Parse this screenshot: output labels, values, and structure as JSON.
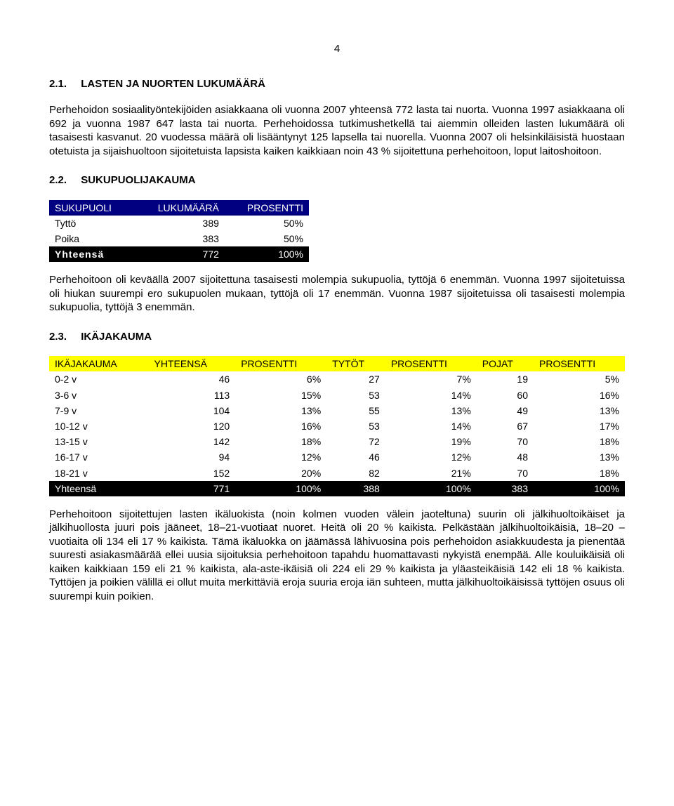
{
  "page_number": "4",
  "section1": {
    "heading_num": "2.1.",
    "heading_text": "LASTEN JA NUORTEN LUKUMÄÄRÄ",
    "para": "Perhehoidon sosiaalityöntekijöiden asiakkaana oli vuonna 2007 yhteensä 772 lasta tai nuorta. Vuonna 1997 asiakkaana oli 692 ja vuonna 1987 647 lasta tai nuorta. Perhehoidossa tutkimushetkellä tai aiemmin olleiden lasten lukumäärä oli tasaisesti kasvanut. 20 vuodessa määrä oli lisääntynyt 125 lapsella tai nuorella. Vuonna 2007 oli helsinkiläisistä huostaan otetuista ja sijaishuoltoon sijoitetuista lapsista kaiken kaikkiaan noin 43 % sijoitettuna perhehoitoon, loput laitoshoitoon."
  },
  "section2": {
    "heading_num": "2.2.",
    "heading_text": "SUKUPUOLIJAKAUMA",
    "table": {
      "header_bg": "#000080",
      "header_fg": "#ffffff",
      "total_bg": "#000000",
      "total_fg": "#ffffff",
      "columns": [
        "SUKUPUOLI",
        "LUKUMÄÄRÄ",
        "PROSENTTI"
      ],
      "rows": [
        {
          "label": "Tyttö",
          "count": "389",
          "pct": "50%"
        },
        {
          "label": "Poika",
          "count": "383",
          "pct": "50%"
        }
      ],
      "total": {
        "label": "Yhteensä",
        "count": "772",
        "pct": "100%"
      }
    },
    "para": "Perhehoitoon oli keväällä 2007 sijoitettuna tasaisesti molempia sukupuolia, tyttöjä 6 enemmän. Vuonna 1997 sijoitetuissa oli hiukan suurempi ero sukupuolen mukaan, tyttöjä oli 17 enemmän. Vuonna 1987 sijoitetuissa oli tasaisesti molempia sukupuolia, tyttöjä 3 enemmän."
  },
  "section3": {
    "heading_num": "2.3.",
    "heading_text": "IKÄJAKAUMA",
    "table": {
      "header_bg": "#ffff00",
      "header_fg": "#000000",
      "total_bg": "#000000",
      "total_fg": "#ffffff",
      "columns": [
        "IKÄJAKAUMA",
        "YHTEENSÄ",
        "PROSENTTI",
        "TYTÖT",
        "PROSENTTI",
        "POJAT",
        "PROSENTTI"
      ],
      "rows": [
        {
          "label": "0-2 v",
          "v1": "46",
          "p1": "6%",
          "v2": "27",
          "p2": "7%",
          "v3": "19",
          "p3": "5%"
        },
        {
          "label": "3-6 v",
          "v1": "113",
          "p1": "15%",
          "v2": "53",
          "p2": "14%",
          "v3": "60",
          "p3": "16%"
        },
        {
          "label": "7-9 v",
          "v1": "104",
          "p1": "13%",
          "v2": "55",
          "p2": "13%",
          "v3": "49",
          "p3": "13%"
        },
        {
          "label": "10-12 v",
          "v1": "120",
          "p1": "16%",
          "v2": "53",
          "p2": "14%",
          "v3": "67",
          "p3": "17%"
        },
        {
          "label": "13-15 v",
          "v1": "142",
          "p1": "18%",
          "v2": "72",
          "p2": "19%",
          "v3": "70",
          "p3": "18%"
        },
        {
          "label": "16-17 v",
          "v1": "94",
          "p1": "12%",
          "v2": "46",
          "p2": "12%",
          "v3": "48",
          "p3": "13%"
        },
        {
          "label": "18-21 v",
          "v1": "152",
          "p1": "20%",
          "v2": "82",
          "p2": "21%",
          "v3": "70",
          "p3": "18%"
        }
      ],
      "total": {
        "label": "Yhteensä",
        "v1": "771",
        "p1": "100%",
        "v2": "388",
        "p2": "100%",
        "v3": "383",
        "p3": "100%"
      }
    },
    "para": "Perhehoitoon sijoitettujen lasten ikäluokista (noin kolmen vuoden välein jaoteltuna) suurin oli jälkihuoltoikäiset ja jälkihuollosta juuri pois jääneet, 18–21-vuotiaat nuoret. Heitä oli 20 % kaikista.  Pelkästään jälkihuoltoikäisiä, 18–20 –vuotiaita oli 134 eli 17 % kaikista. Tämä ikäluokka on jäämässä lähivuosina pois perhehoidon asiakkuudesta ja pienentää suuresti asiakasmäärää ellei uusia sijoituksia perhehoitoon tapahdu huomattavasti nykyistä enempää. Alle kouluikäisiä oli kaiken kaikkiaan 159 eli 21 % kaikista, ala-aste-ikäisiä oli 224 eli 29 % kaikista ja yläasteikäisiä 142 eli 18 % kaikista. Tyttöjen ja poikien välillä ei ollut muita merkittäviä eroja suuria eroja iän suhteen, mutta jälkihuoltoikäisissä tyttöjen osuus oli suurempi kuin poikien."
  }
}
